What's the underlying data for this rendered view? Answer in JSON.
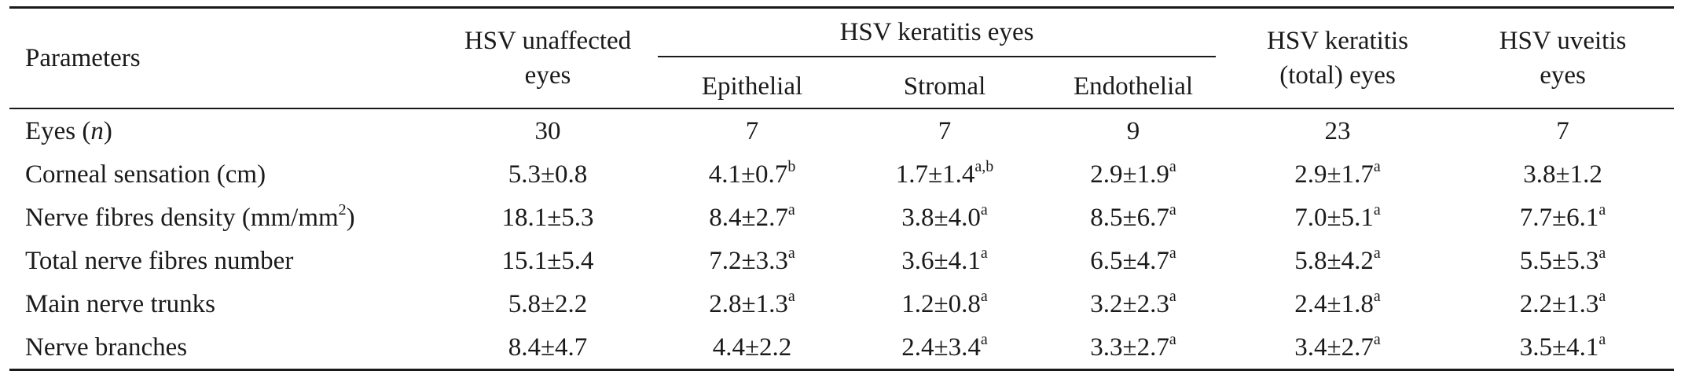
{
  "table": {
    "header": {
      "parameters": "Parameters",
      "col_unaffected_line1": "HSV unaffected",
      "col_unaffected_line2": "eyes",
      "group_keratitis": "HSV keratitis eyes",
      "sub_epithelial": "Epithelial",
      "sub_stromal": "Stromal",
      "sub_endothelial": "Endothelial",
      "col_total_line1": "HSV keratitis",
      "col_total_line2": "(total) eyes",
      "col_uveitis_line1": "HSV uveitis",
      "col_uveitis_line2": "eyes"
    },
    "rows": [
      {
        "label_main": "Eyes (",
        "label_italic": "n",
        "label_tail": ")",
        "cells": [
          {
            "v": "30",
            "s": ""
          },
          {
            "v": "7",
            "s": ""
          },
          {
            "v": "7",
            "s": ""
          },
          {
            "v": "9",
            "s": ""
          },
          {
            "v": "23",
            "s": ""
          },
          {
            "v": "7",
            "s": ""
          }
        ]
      },
      {
        "label_main": "Corneal sensation (cm)",
        "label_italic": "",
        "label_tail": "",
        "cells": [
          {
            "v": "5.3±0.8",
            "s": ""
          },
          {
            "v": "4.1±0.7",
            "s": "b"
          },
          {
            "v": "1.7±1.4",
            "s": "a,b"
          },
          {
            "v": "2.9±1.9",
            "s": "a"
          },
          {
            "v": "2.9±1.7",
            "s": "a"
          },
          {
            "v": "3.8±1.2",
            "s": ""
          }
        ]
      },
      {
        "label_main": "Nerve fibres density (mm/mm",
        "label_sup": "2",
        "label_tail": ")",
        "cells": [
          {
            "v": "18.1±5.3",
            "s": ""
          },
          {
            "v": "8.4±2.7",
            "s": "a"
          },
          {
            "v": "3.8±4.0",
            "s": "a"
          },
          {
            "v": "8.5±6.7",
            "s": "a"
          },
          {
            "v": "7.0±5.1",
            "s": "a"
          },
          {
            "v": "7.7±6.1",
            "s": "a"
          }
        ]
      },
      {
        "label_main": "Total nerve fibres number",
        "label_italic": "",
        "label_tail": "",
        "cells": [
          {
            "v": "15.1±5.4",
            "s": ""
          },
          {
            "v": "7.2±3.3",
            "s": "a"
          },
          {
            "v": "3.6±4.1",
            "s": "a"
          },
          {
            "v": "6.5±4.7",
            "s": "a"
          },
          {
            "v": "5.8±4.2",
            "s": "a"
          },
          {
            "v": "5.5±5.3",
            "s": "a"
          }
        ]
      },
      {
        "label_main": "Main nerve trunks",
        "label_italic": "",
        "label_tail": "",
        "cells": [
          {
            "v": "5.8±2.2",
            "s": ""
          },
          {
            "v": "2.8±1.3",
            "s": "a"
          },
          {
            "v": "1.2±0.8",
            "s": "a"
          },
          {
            "v": "3.2±2.3",
            "s": "a"
          },
          {
            "v": "2.4±1.8",
            "s": "a"
          },
          {
            "v": "2.2±1.3",
            "s": "a"
          }
        ]
      },
      {
        "label_main": "Nerve branches",
        "label_italic": "",
        "label_tail": "",
        "cells": [
          {
            "v": "8.4±4.7",
            "s": ""
          },
          {
            "v": "4.4±2.2",
            "s": ""
          },
          {
            "v": "2.4±3.4",
            "s": "a"
          },
          {
            "v": "3.3±2.7",
            "s": "a"
          },
          {
            "v": "3.4±2.7",
            "s": "a"
          },
          {
            "v": "3.5±4.1",
            "s": "a"
          }
        ]
      }
    ]
  }
}
